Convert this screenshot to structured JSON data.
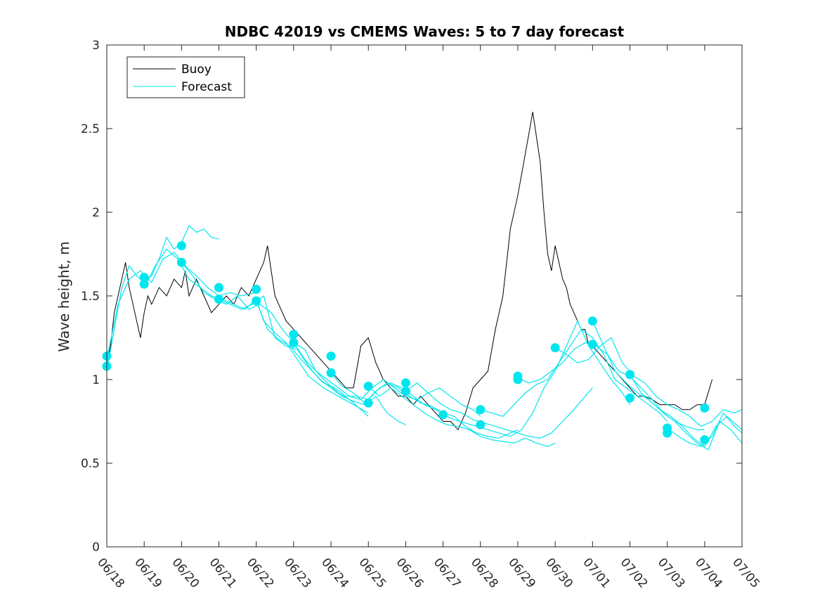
{
  "chart_data": {
    "type": "line",
    "title": "NDBC 42019 vs CMEMS Waves: 5 to 7 day forecast",
    "xlabel": "",
    "ylabel": "Wave height, m",
    "xlim": [
      0,
      17
    ],
    "ylim": [
      0,
      3
    ],
    "x_tick_labels": [
      "06/18",
      "06/19",
      "06/20",
      "06/21",
      "06/22",
      "06/23",
      "06/24",
      "06/25",
      "06/26",
      "06/27",
      "06/28",
      "06/29",
      "06/30",
      "07/01",
      "07/02",
      "07/03",
      "07/04",
      "07/05"
    ],
    "y_ticks": [
      0,
      0.5,
      1,
      1.5,
      2,
      2.5,
      3
    ],
    "y_tick_labels": [
      "0",
      "0.5",
      "1",
      "1.5",
      "2",
      "2.5",
      "3"
    ],
    "legend": {
      "position": "top-left",
      "entries": [
        "Buoy",
        "Forecast"
      ]
    },
    "colors": {
      "buoy": "#000000",
      "forecast": "#00e5ee",
      "axis": "#262626"
    },
    "series": [
      {
        "name": "Buoy",
        "x": [
          0.0,
          0.1,
          0.2,
          0.3,
          0.4,
          0.5,
          0.6,
          0.7,
          0.8,
          0.9,
          1.0,
          1.1,
          1.2,
          1.4,
          1.6,
          1.8,
          2.0,
          2.1,
          2.2,
          2.4,
          2.6,
          2.8,
          3.0,
          3.2,
          3.4,
          3.6,
          3.8,
          4.0,
          4.2,
          4.3,
          4.4,
          4.5,
          4.6,
          4.7,
          4.8,
          5.0,
          5.2,
          5.4,
          5.6,
          5.8,
          6.0,
          6.2,
          6.4,
          6.6,
          6.8,
          7.0,
          7.2,
          7.4,
          7.6,
          7.8,
          8.0,
          8.2,
          8.4,
          8.6,
          8.8,
          9.0,
          9.2,
          9.4,
          9.6,
          9.8,
          10.0,
          10.2,
          10.4,
          10.6,
          10.8,
          11.0,
          11.2,
          11.4,
          11.6,
          11.7,
          11.8,
          11.9,
          12.0,
          12.1,
          12.2,
          12.3,
          12.4,
          12.5,
          12.6,
          12.7,
          12.8,
          12.9,
          13.0,
          13.2,
          13.4,
          13.6,
          13.8,
          14.0,
          14.2,
          14.4,
          14.6,
          14.8,
          15.0,
          15.2,
          15.4,
          15.6,
          15.8,
          16.0,
          16.2
        ],
        "values": [
          1.1,
          1.2,
          1.4,
          1.5,
          1.6,
          1.7,
          1.55,
          1.45,
          1.35,
          1.25,
          1.4,
          1.5,
          1.45,
          1.55,
          1.5,
          1.6,
          1.55,
          1.65,
          1.5,
          1.6,
          1.5,
          1.4,
          1.45,
          1.5,
          1.45,
          1.55,
          1.5,
          1.6,
          1.7,
          1.8,
          1.65,
          1.5,
          1.45,
          1.4,
          1.35,
          1.3,
          1.25,
          1.2,
          1.15,
          1.1,
          1.05,
          1.0,
          0.95,
          0.95,
          1.2,
          1.25,
          1.1,
          1.0,
          0.95,
          0.9,
          0.9,
          0.85,
          0.9,
          0.85,
          0.8,
          0.75,
          0.75,
          0.7,
          0.8,
          0.95,
          1.0,
          1.05,
          1.3,
          1.5,
          1.9,
          2.1,
          2.35,
          2.6,
          2.3,
          2.0,
          1.75,
          1.65,
          1.8,
          1.7,
          1.6,
          1.55,
          1.45,
          1.4,
          1.35,
          1.3,
          1.3,
          1.2,
          1.2,
          1.15,
          1.1,
          1.05,
          1.0,
          0.95,
          0.9,
          0.9,
          0.88,
          0.85,
          0.85,
          0.85,
          0.82,
          0.82,
          0.85,
          0.85,
          1.0
        ]
      },
      {
        "name": "Forecast",
        "segments": [
          {
            "x": [
              0.0,
              0.2,
              0.4,
              0.6,
              0.8,
              1.0,
              1.2,
              1.4,
              1.6,
              1.8,
              2.0,
              2.2,
              2.4,
              2.6,
              2.8,
              3.0
            ],
            "values": [
              1.05,
              1.3,
              1.55,
              1.68,
              1.62,
              1.58,
              1.62,
              1.72,
              1.85,
              1.78,
              1.82,
              1.92,
              1.88,
              1.9,
              1.85,
              1.84
            ]
          },
          {
            "x": [
              0.0,
              0.3,
              0.6,
              0.9,
              1.2,
              1.5,
              1.8,
              2.1,
              2.4,
              2.7,
              3.0,
              3.3,
              3.6,
              4.0
            ],
            "values": [
              1.12,
              1.45,
              1.6,
              1.65,
              1.58,
              1.72,
              1.76,
              1.68,
              1.62,
              1.55,
              1.5,
              1.52,
              1.5,
              1.52
            ]
          },
          {
            "x": [
              1.0,
              1.3,
              1.6,
              1.9,
              2.2,
              2.5,
              2.8,
              3.1,
              3.4,
              3.7,
              4.0,
              4.2,
              4.5,
              4.8,
              5.1,
              5.4,
              5.8,
              6.2,
              6.6,
              7.0
            ],
            "values": [
              1.55,
              1.68,
              1.78,
              1.72,
              1.6,
              1.55,
              1.5,
              1.48,
              1.45,
              1.42,
              1.48,
              1.35,
              1.28,
              1.22,
              1.12,
              1.02,
              0.95,
              0.9,
              0.85,
              0.8
            ]
          },
          {
            "x": [
              2.0,
              2.3,
              2.6,
              2.9,
              3.2,
              3.5,
              3.8,
              4.1,
              4.4,
              4.7,
              5.0,
              5.3,
              5.6,
              5.9,
              6.2,
              6.5,
              6.8,
              7.0
            ],
            "values": [
              1.7,
              1.62,
              1.52,
              1.48,
              1.45,
              1.5,
              1.42,
              1.45,
              1.4,
              1.3,
              1.22,
              1.18,
              1.05,
              0.98,
              0.92,
              0.88,
              0.82,
              0.78
            ]
          },
          {
            "x": [
              3.0,
              3.3,
              3.6,
              3.9,
              4.2,
              4.5,
              4.8,
              5.1,
              5.4,
              5.7,
              6.0,
              6.3,
              6.6,
              6.9,
              7.2,
              7.5,
              7.8,
              8.0
            ],
            "values": [
              1.48,
              1.45,
              1.42,
              1.45,
              1.5,
              1.25,
              1.2,
              1.18,
              1.08,
              1.0,
              0.95,
              0.9,
              0.87,
              0.85,
              0.9,
              0.8,
              0.75,
              0.73
            ]
          },
          {
            "x": [
              4.0,
              4.3,
              4.6,
              4.9,
              5.2,
              5.5,
              5.8,
              6.1,
              6.4,
              6.7,
              7.0,
              7.3,
              7.6,
              7.9,
              8.2,
              8.5,
              8.8,
              9.0
            ],
            "values": [
              1.47,
              1.3,
              1.24,
              1.2,
              1.12,
              1.05,
              0.98,
              0.95,
              0.9,
              0.9,
              0.88,
              0.95,
              0.98,
              0.95,
              0.9,
              0.85,
              0.82,
              0.8
            ]
          },
          {
            "x": [
              5.0,
              5.3,
              5.6,
              5.9,
              6.2,
              6.5,
              6.8,
              7.1,
              7.4,
              7.7,
              8.0,
              8.3,
              8.6,
              8.9,
              9.2,
              9.5,
              9.8,
              10.0
            ],
            "values": [
              1.22,
              1.12,
              1.05,
              1.0,
              0.95,
              0.9,
              0.88,
              0.95,
              1.0,
              0.95,
              0.9,
              0.88,
              0.92,
              0.95,
              0.9,
              0.85,
              0.82,
              0.78
            ]
          },
          {
            "x": [
              6.0,
              6.3,
              6.6,
              6.9,
              7.2,
              7.5,
              7.8,
              8.1,
              8.4,
              8.7,
              9.0,
              9.3,
              9.6,
              9.9,
              10.2,
              10.5,
              10.8,
              11.0
            ],
            "values": [
              1.04,
              0.96,
              0.92,
              0.86,
              0.93,
              0.98,
              0.95,
              0.9,
              0.86,
              0.84,
              0.8,
              0.78,
              0.72,
              0.68,
              0.66,
              0.65,
              0.68,
              0.7
            ]
          },
          {
            "x": [
              7.0,
              7.3,
              7.6,
              7.9,
              8.2,
              8.5,
              8.8,
              9.1,
              9.4,
              9.7,
              10.0,
              10.3,
              10.6,
              10.9,
              11.2,
              11.5,
              11.8,
              12.0
            ],
            "values": [
              0.96,
              0.9,
              0.95,
              0.9,
              0.85,
              0.8,
              0.76,
              0.73,
              0.72,
              0.7,
              0.66,
              0.64,
              0.63,
              0.62,
              0.65,
              0.62,
              0.6,
              0.62
            ]
          },
          {
            "x": [
              8.0,
              8.3,
              8.6,
              8.9,
              9.2,
              9.5,
              9.8,
              10.1,
              10.4,
              10.7,
              11.0,
              11.3,
              11.6,
              11.9,
              12.2,
              12.5,
              12.8,
              13.0
            ],
            "values": [
              0.93,
              0.98,
              0.92,
              0.86,
              0.82,
              0.8,
              0.76,
              0.74,
              0.72,
              0.7,
              0.68,
              0.66,
              0.65,
              0.68,
              0.75,
              0.82,
              0.9,
              0.95
            ]
          },
          {
            "x": [
              9.0,
              9.3,
              9.6,
              9.9,
              10.2,
              10.5,
              10.8,
              11.1,
              11.4,
              11.7,
              12.0,
              12.3,
              12.6,
              12.9,
              13.2,
              13.5,
              13.8,
              14.0
            ],
            "values": [
              0.79,
              0.76,
              0.74,
              0.72,
              0.7,
              0.68,
              0.66,
              0.7,
              0.8,
              0.95,
              1.05,
              1.2,
              1.35,
              1.2,
              1.1,
              1.0,
              0.92,
              0.85
            ]
          },
          {
            "x": [
              10.0,
              10.3,
              10.6,
              10.9,
              11.2,
              11.5,
              11.8,
              12.1,
              12.4,
              12.7,
              13.0,
              13.3,
              13.6,
              13.9,
              14.2,
              14.5,
              14.8,
              15.0
            ],
            "values": [
              0.82,
              0.8,
              0.78,
              0.85,
              0.92,
              0.97,
              1.0,
              1.1,
              1.2,
              1.3,
              1.25,
              1.15,
              1.0,
              0.95,
              0.9,
              0.85,
              0.8,
              0.75
            ]
          },
          {
            "x": [
              11.0,
              11.3,
              11.6,
              11.9,
              12.2,
              12.5,
              12.8,
              13.1,
              13.4,
              13.7,
              14.0,
              14.3,
              14.6,
              14.9,
              15.2,
              15.5,
              15.8,
              16.0
            ],
            "values": [
              1.01,
              0.98,
              1.0,
              1.05,
              1.1,
              1.18,
              1.22,
              1.2,
              1.15,
              1.05,
              1.02,
              0.95,
              0.88,
              0.8,
              0.75,
              0.72,
              0.7,
              0.7
            ]
          },
          {
            "x": [
              12.0,
              12.3,
              12.6,
              12.9,
              13.2,
              13.5,
              13.8,
              14.1,
              14.4,
              14.7,
              15.0,
              15.3,
              15.6,
              15.9,
              16.2,
              16.5,
              16.8,
              17.0
            ],
            "values": [
              1.19,
              1.15,
              1.1,
              1.12,
              1.2,
              1.25,
              1.1,
              1.02,
              0.98,
              0.9,
              0.85,
              0.82,
              0.78,
              0.72,
              0.75,
              0.82,
              0.8,
              0.82
            ]
          },
          {
            "x": [
              13.0,
              13.3,
              13.6,
              13.9,
              14.2,
              14.5,
              14.8,
              15.1,
              15.4,
              15.7,
              16.0,
              16.3,
              16.6,
              17.0
            ],
            "values": [
              1.35,
              1.2,
              1.05,
              0.98,
              0.92,
              0.88,
              0.82,
              0.78,
              0.72,
              0.65,
              0.6,
              0.72,
              0.78,
              0.7
            ]
          },
          {
            "x": [
              14.0,
              14.3,
              14.6,
              14.9,
              15.2,
              15.5,
              15.8,
              16.1,
              16.4,
              16.7,
              17.0
            ],
            "values": [
              1.03,
              0.92,
              0.86,
              0.8,
              0.75,
              0.68,
              0.62,
              0.58,
              0.75,
              0.7,
              0.62
            ]
          },
          {
            "x": [
              15.0,
              15.3,
              15.6,
              15.9,
              16.2,
              16.5,
              16.8,
              17.0
            ],
            "values": [
              0.71,
              0.66,
              0.62,
              0.6,
              0.66,
              0.8,
              0.72,
              0.68
            ]
          }
        ],
        "markers": {
          "x": [
            0,
            0,
            1,
            1,
            2,
            2,
            3,
            3,
            4,
            4,
            5,
            5,
            6,
            6,
            7,
            7,
            8,
            8,
            9,
            10,
            10,
            11,
            11,
            12,
            13,
            13,
            14,
            14,
            15,
            15,
            16,
            16
          ],
          "values": [
            1.14,
            1.08,
            1.61,
            1.57,
            1.8,
            1.7,
            1.55,
            1.48,
            1.54,
            1.47,
            1.27,
            1.22,
            1.14,
            1.04,
            0.96,
            0.86,
            0.98,
            0.93,
            0.79,
            0.82,
            0.73,
            1.02,
            1.0,
            1.19,
            1.35,
            1.21,
            1.03,
            0.89,
            0.71,
            0.68,
            0.83,
            0.64
          ]
        }
      }
    ]
  }
}
